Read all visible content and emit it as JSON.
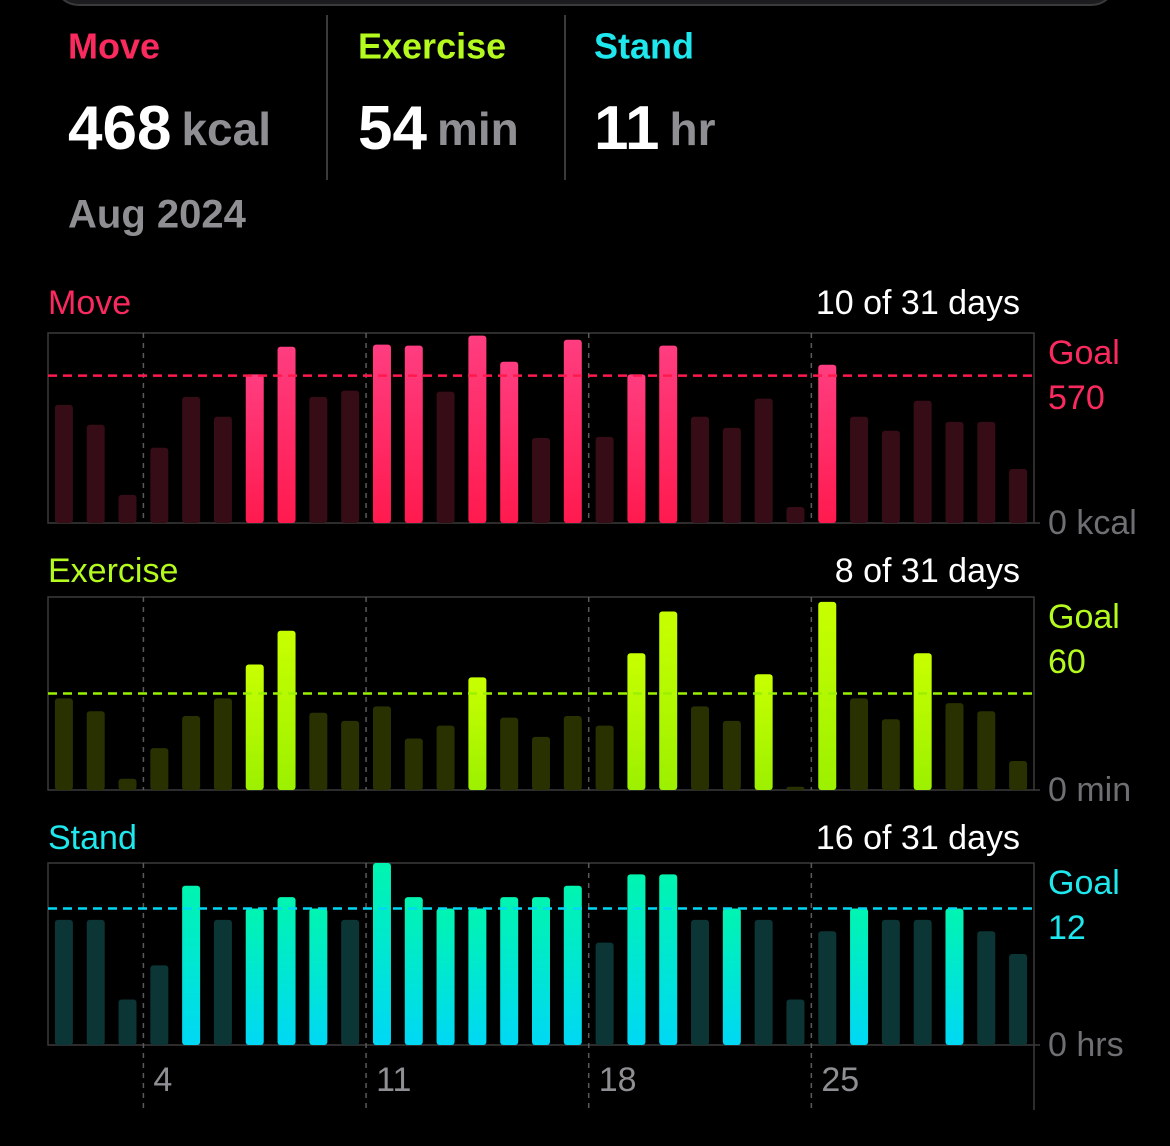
{
  "summary": {
    "items": [
      {
        "label": "Move",
        "value": 468,
        "unit": "kcal",
        "color": "#fa2a5f"
      },
      {
        "label": "Exercise",
        "value": 54,
        "unit": "min",
        "color": "#b5fa1e"
      },
      {
        "label": "Stand",
        "value": 11,
        "unit": "hr",
        "color": "#1ee8ee"
      }
    ],
    "period": "Aug 2024"
  },
  "chart_data": [
    {
      "type": "bar",
      "title": "Move",
      "subtitle": "10 of 31 days",
      "text_color": "#fa2a5f",
      "gradient": [
        "#ff3d80",
        "#ff1a4e"
      ],
      "dim_color": "#360c17",
      "x": [
        1,
        2,
        3,
        4,
        5,
        6,
        7,
        8,
        9,
        10,
        11,
        12,
        13,
        14,
        15,
        16,
        17,
        18,
        19,
        20,
        21,
        22,
        23,
        24,
        25,
        26,
        27,
        28,
        29,
        30,
        31
      ],
      "xlim": [
        0.5,
        31.5
      ],
      "values": [
        457,
        380,
        109,
        291,
        488,
        411,
        575,
        682,
        488,
        512,
        690,
        686,
        508,
        725,
        624,
        329,
        709,
        333,
        575,
        686,
        411,
        368,
        481,
        62,
        612,
        411,
        357,
        473,
        391,
        391,
        209
      ],
      "ylim": [
        0,
        735
      ],
      "yticks": [
        {
          "value": 0,
          "label": "0 kcal"
        }
      ],
      "goal_label": "Goal",
      "goal": 570
    },
    {
      "type": "bar",
      "title": "Exercise",
      "subtitle": "8 of 31 days",
      "text_color": "#b5fa1e",
      "gradient": [
        "#c8ff00",
        "#9cf000"
      ],
      "dim_color": "#2a3100",
      "x": [
        1,
        2,
        3,
        4,
        5,
        6,
        7,
        8,
        9,
        10,
        11,
        12,
        13,
        14,
        15,
        16,
        17,
        18,
        19,
        20,
        21,
        22,
        23,
        24,
        25,
        26,
        27,
        28,
        29,
        30,
        31
      ],
      "xlim": [
        0.5,
        31.5
      ],
      "values": [
        57,
        49,
        7,
        26,
        46,
        57,
        78,
        99,
        48,
        43,
        52,
        32,
        40,
        70,
        45,
        33,
        46,
        40,
        85,
        111,
        52,
        43,
        72,
        2,
        117,
        57,
        44,
        85,
        54,
        49,
        18
      ],
      "ylim": [
        0,
        120
      ],
      "yticks": [
        {
          "value": 0,
          "label": "0 min"
        }
      ],
      "goal_label": "Goal",
      "goal": 60
    },
    {
      "type": "bar",
      "title": "Stand",
      "subtitle": "16 of 31 days",
      "text_color": "#1ee8ee",
      "gradient": [
        "#00f5b0",
        "#00d8f5"
      ],
      "dim_color": "#0c3536",
      "x": [
        1,
        2,
        3,
        4,
        5,
        6,
        7,
        8,
        9,
        10,
        11,
        12,
        13,
        14,
        15,
        16,
        17,
        18,
        19,
        20,
        21,
        22,
        23,
        24,
        25,
        26,
        27,
        28,
        29,
        30,
        31
      ],
      "xlim": [
        0.5,
        31.5
      ],
      "values": [
        11,
        11,
        4,
        7,
        14,
        11,
        12,
        13,
        12,
        11,
        16,
        13,
        12,
        12,
        13,
        13,
        14,
        9,
        15,
        15,
        11,
        12,
        11,
        4,
        10,
        12,
        11,
        11,
        12,
        10,
        8
      ],
      "ylim": [
        0,
        16
      ],
      "yticks": [
        {
          "value": 0,
          "label": "0 hrs"
        }
      ],
      "goal_label": "Goal",
      "goal": 12,
      "xticks": [
        4,
        11,
        18,
        25
      ]
    }
  ]
}
